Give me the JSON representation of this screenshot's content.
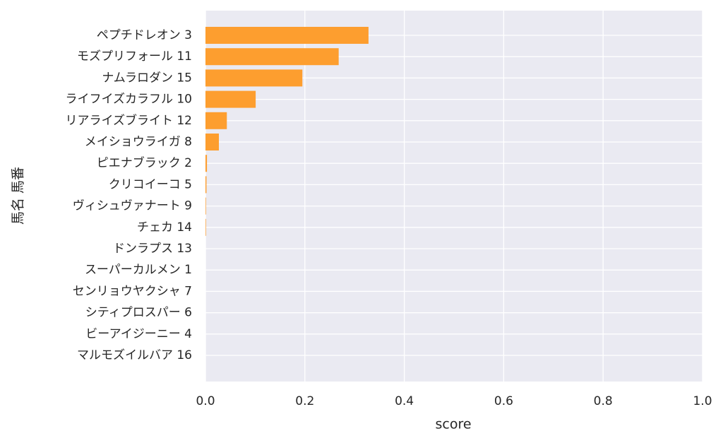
{
  "chart_data": {
    "type": "barh",
    "xlabel": "score",
    "ylabel": "馬名 馬番",
    "categories": [
      "ペプチドレオン 3",
      "モズプリフォール 11",
      "ナムラロダン 15",
      "ライフイズカラフル 10",
      "リアライズブライト 12",
      "メイショウライガ 8",
      "ピエナブラック 2",
      "クリコイーコ 5",
      "ヴィシュヴァナート 9",
      "チェカ 14",
      "ドンラプス 13",
      "スーパーカルメン 1",
      "センリョウヤクシャ 7",
      "シティプロスパー 6",
      "ビーアイジーニー 4",
      "マルモズイルバア 16"
    ],
    "values": [
      0.328,
      0.268,
      0.195,
      0.101,
      0.043,
      0.027,
      0.003,
      0.002,
      0.001,
      0.001,
      0,
      0,
      0,
      0,
      0,
      0
    ],
    "color": "#fd9e2f",
    "xlim": [
      0,
      1
    ],
    "xticks": [
      {
        "value": 0,
        "label": "0.0"
      },
      {
        "value": 0.2,
        "label": "0.2"
      },
      {
        "value": 0.4,
        "label": "0.4"
      },
      {
        "value": 0.6,
        "label": "0.6"
      },
      {
        "value": 0.8,
        "label": "0.8"
      },
      {
        "value": 1,
        "label": "1.0"
      }
    ],
    "grid": true
  }
}
